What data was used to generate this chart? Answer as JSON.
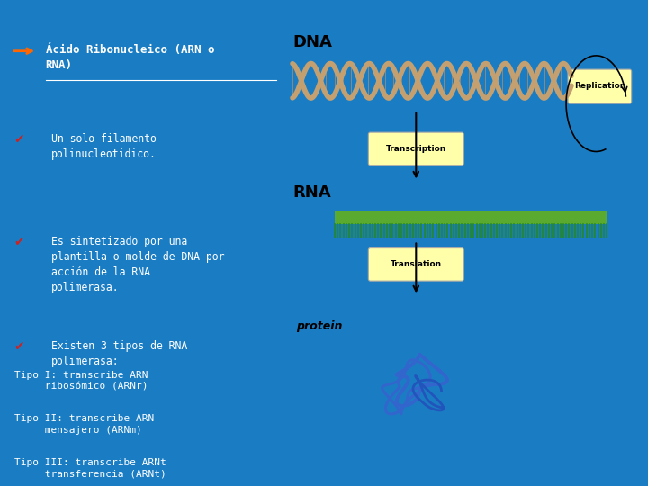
{
  "bg_color": "#1a7dc4",
  "text_color": "#ffffff",
  "title_text": "Ácido Ribonucleico (ARN o\nRNA)",
  "bullet1": "Un solo filamento\npolinucleotidico.",
  "bullet2": "Es sintetizado por una\nplantilla o molde de DNA por\nacción de la RNA\npolimerasa.",
  "bullet3": "Existen 3 tipos de RNA\npolimerasa:",
  "tipo1": "Tipo I: transcribe ARN\n     ribosómico (ARNr)",
  "tipo2": "Tipo II: transcribe ARN\n     mensajero (ARNm)",
  "tipo3": "Tipo III: transcribe ARNt\n     transferencia (ARNt)",
  "check_color": "#cc2222",
  "font_family": "monospace"
}
